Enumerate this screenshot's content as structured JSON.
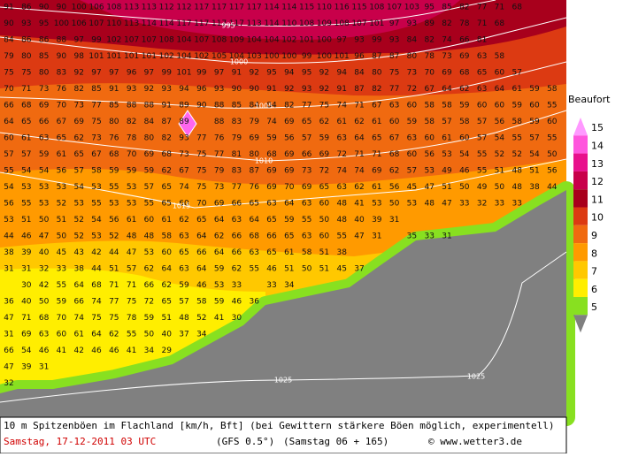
{
  "map": {
    "grid": [
      [
        91,
        86,
        90,
        90,
        100,
        106,
        108,
        113,
        113,
        112,
        112,
        117,
        117,
        117,
        117,
        114,
        114,
        115,
        110,
        116,
        115,
        108,
        107,
        103,
        95,
        85,
        82,
        77,
        71,
        68
      ],
      [
        90,
        93,
        95,
        100,
        106,
        107,
        110,
        113,
        114,
        114,
        117,
        117,
        117,
        117,
        113,
        114,
        110,
        108,
        109,
        108,
        107,
        101,
        97,
        93,
        89,
        82,
        78,
        71,
        68
      ],
      [
        84,
        86,
        86,
        88,
        97,
        99,
        102,
        107,
        107,
        108,
        104,
        107,
        108,
        109,
        104,
        104,
        102,
        101,
        100,
        97,
        93,
        99,
        93,
        84,
        82,
        74,
        66,
        81
      ],
      [
        79,
        80,
        85,
        90,
        98,
        101,
        101,
        101,
        101,
        102,
        104,
        102,
        105,
        104,
        103,
        100,
        100,
        99,
        100,
        101,
        96,
        87,
        87,
        80,
        78,
        73,
        69,
        63,
        58
      ],
      [
        75,
        75,
        80,
        83,
        92,
        97,
        97,
        96,
        97,
        99,
        101,
        99,
        97,
        91,
        92,
        95,
        94,
        95,
        92,
        94,
        84,
        80,
        75,
        73,
        70,
        69,
        68,
        65,
        60,
        57
      ],
      [
        70,
        71,
        73,
        76,
        82,
        85,
        91,
        93,
        92,
        93,
        94,
        96,
        93,
        90,
        90,
        91,
        92,
        93,
        92,
        91,
        87,
        82,
        77,
        72,
        67,
        64,
        62,
        63,
        64,
        61,
        59,
        58
      ],
      [
        66,
        68,
        69,
        70,
        73,
        77,
        85,
        88,
        88,
        91,
        89,
        90,
        88,
        85,
        84,
        84,
        82,
        77,
        75,
        74,
        71,
        67,
        63,
        60,
        58,
        58,
        59,
        60,
        60,
        59,
        60,
        55
      ],
      [
        64,
        65,
        66,
        67,
        69,
        75,
        80,
        82,
        84,
        87,
        89,
        null,
        88,
        83,
        79,
        74,
        69,
        65,
        62,
        61,
        62,
        61,
        60,
        59,
        58,
        57,
        58,
        57,
        56,
        58,
        59,
        60
      ],
      [
        60,
        61,
        63,
        65,
        62,
        73,
        76,
        78,
        80,
        82,
        93,
        77,
        76,
        79,
        69,
        59,
        56,
        57,
        59,
        63,
        64,
        65,
        67,
        63,
        60,
        61,
        60,
        57,
        54,
        55,
        57,
        55
      ],
      [
        57,
        57,
        59,
        61,
        65,
        67,
        68,
        70,
        69,
        68,
        73,
        75,
        77,
        81,
        80,
        68,
        69,
        66,
        69,
        72,
        71,
        71,
        68,
        60,
        56,
        53,
        54,
        55,
        52,
        52,
        54,
        50
      ],
      [
        55,
        54,
        54,
        56,
        57,
        58,
        59,
        59,
        59,
        62,
        67,
        75,
        79,
        83,
        87,
        69,
        69,
        73,
        72,
        74,
        74,
        69,
        62,
        57,
        53,
        49,
        46,
        55,
        51,
        48,
        51,
        56
      ],
      [
        54,
        53,
        53,
        53,
        54,
        53,
        55,
        53,
        57,
        65,
        74,
        75,
        73,
        77,
        76,
        69,
        70,
        69,
        65,
        63,
        62,
        61,
        56,
        45,
        47,
        51,
        50,
        49,
        50,
        48,
        38,
        44
      ],
      [
        56,
        55,
        53,
        52,
        53,
        55,
        53,
        53,
        55,
        65,
        60,
        70,
        69,
        66,
        65,
        63,
        64,
        63,
        60,
        48,
        41,
        53,
        50,
        53,
        48,
        47,
        33,
        32,
        33,
        33
      ],
      [
        53,
        51,
        50,
        51,
        52,
        54,
        56,
        61,
        60,
        61,
        62,
        65,
        64,
        63,
        64,
        65,
        59,
        55,
        50,
        48,
        40,
        39,
        31
      ],
      [
        44,
        46,
        47,
        50,
        52,
        53,
        52,
        48,
        48,
        58,
        63,
        64,
        62,
        66,
        68,
        66,
        65,
        63,
        60,
        55,
        47,
        31,
        null,
        35,
        33,
        31
      ],
      [
        38,
        39,
        40,
        45,
        43,
        42,
        44,
        47,
        53,
        60,
        65,
        66,
        64,
        66,
        63,
        65,
        61,
        58,
        51,
        38
      ],
      [
        31,
        31,
        32,
        33,
        38,
        44,
        51,
        57,
        62,
        64,
        63,
        64,
        59,
        62,
        55,
        46,
        51,
        50,
        51,
        45,
        37
      ],
      [
        null,
        30,
        42,
        55,
        64,
        68,
        71,
        71,
        66,
        62,
        59,
        46,
        53,
        33,
        null,
        33,
        34
      ],
      [
        36,
        40,
        50,
        59,
        66,
        74,
        77,
        75,
        72,
        65,
        57,
        58,
        59,
        46,
        36
      ],
      [
        47,
        71,
        68,
        70,
        74,
        75,
        75,
        78,
        59,
        51,
        48,
        52,
        41,
        30
      ],
      [
        31,
        69,
        63,
        60,
        61,
        64,
        62,
        55,
        50,
        40,
        37,
        34
      ],
      [
        66,
        54,
        46,
        41,
        42,
        46,
        46,
        41,
        34,
        29
      ],
      [
        47,
        39,
        31
      ],
      [
        32
      ]
    ],
    "isobars": [
      "995",
      "1000",
      "1005",
      "1010",
      "1015",
      "1025",
      "1025"
    ]
  },
  "legend": {
    "title": "Beaufort",
    "items": [
      {
        "label": "15",
        "color": "#ff99ff"
      },
      {
        "label": "14",
        "color": "#ff55dd"
      },
      {
        "label": "13",
        "color": "#e8108c"
      },
      {
        "label": "12",
        "color": "#c8004a"
      },
      {
        "label": "11",
        "color": "#a8001c"
      },
      {
        "label": "10",
        "color": "#dc3a12"
      },
      {
        "label": "9",
        "color": "#f06a10"
      },
      {
        "label": "8",
        "color": "#ff9a00"
      },
      {
        "label": "7",
        "color": "#ffc800"
      },
      {
        "label": "6",
        "color": "#ffee00"
      },
      {
        "label": "5",
        "color": "#88e020"
      }
    ]
  },
  "footer": {
    "line1": "10 m Spitzenböen im Flachland [km/h, Bft] (bei Gewittern stärkere Böen möglich, experimentell)",
    "date": "Samstag, 17-12-2011   03 UTC",
    "model": "(GFS 0.5°)",
    "run": "(Samstag 06 + 165)",
    "copyright": "© www.wetter3.de"
  }
}
